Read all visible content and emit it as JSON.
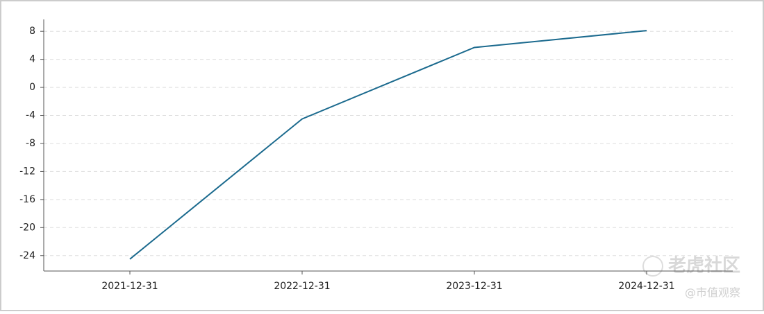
{
  "chart_data": {
    "type": "line",
    "categories": [
      "2021-12-31",
      "2022-12-31",
      "2023-12-31",
      "2024-12-31"
    ],
    "series": [
      {
        "name": null,
        "color": "#1b6a8e",
        "values": [
          -24.5,
          -4.5,
          5.7,
          8.1
        ]
      }
    ],
    "ylim": [
      -26.2,
      9.7
    ],
    "yticks": [
      -24,
      -20,
      -16,
      -12,
      -8,
      -4,
      0,
      4,
      8
    ],
    "grid": true,
    "annotations": [
      "老虎社区",
      "@市值观察"
    ]
  }
}
